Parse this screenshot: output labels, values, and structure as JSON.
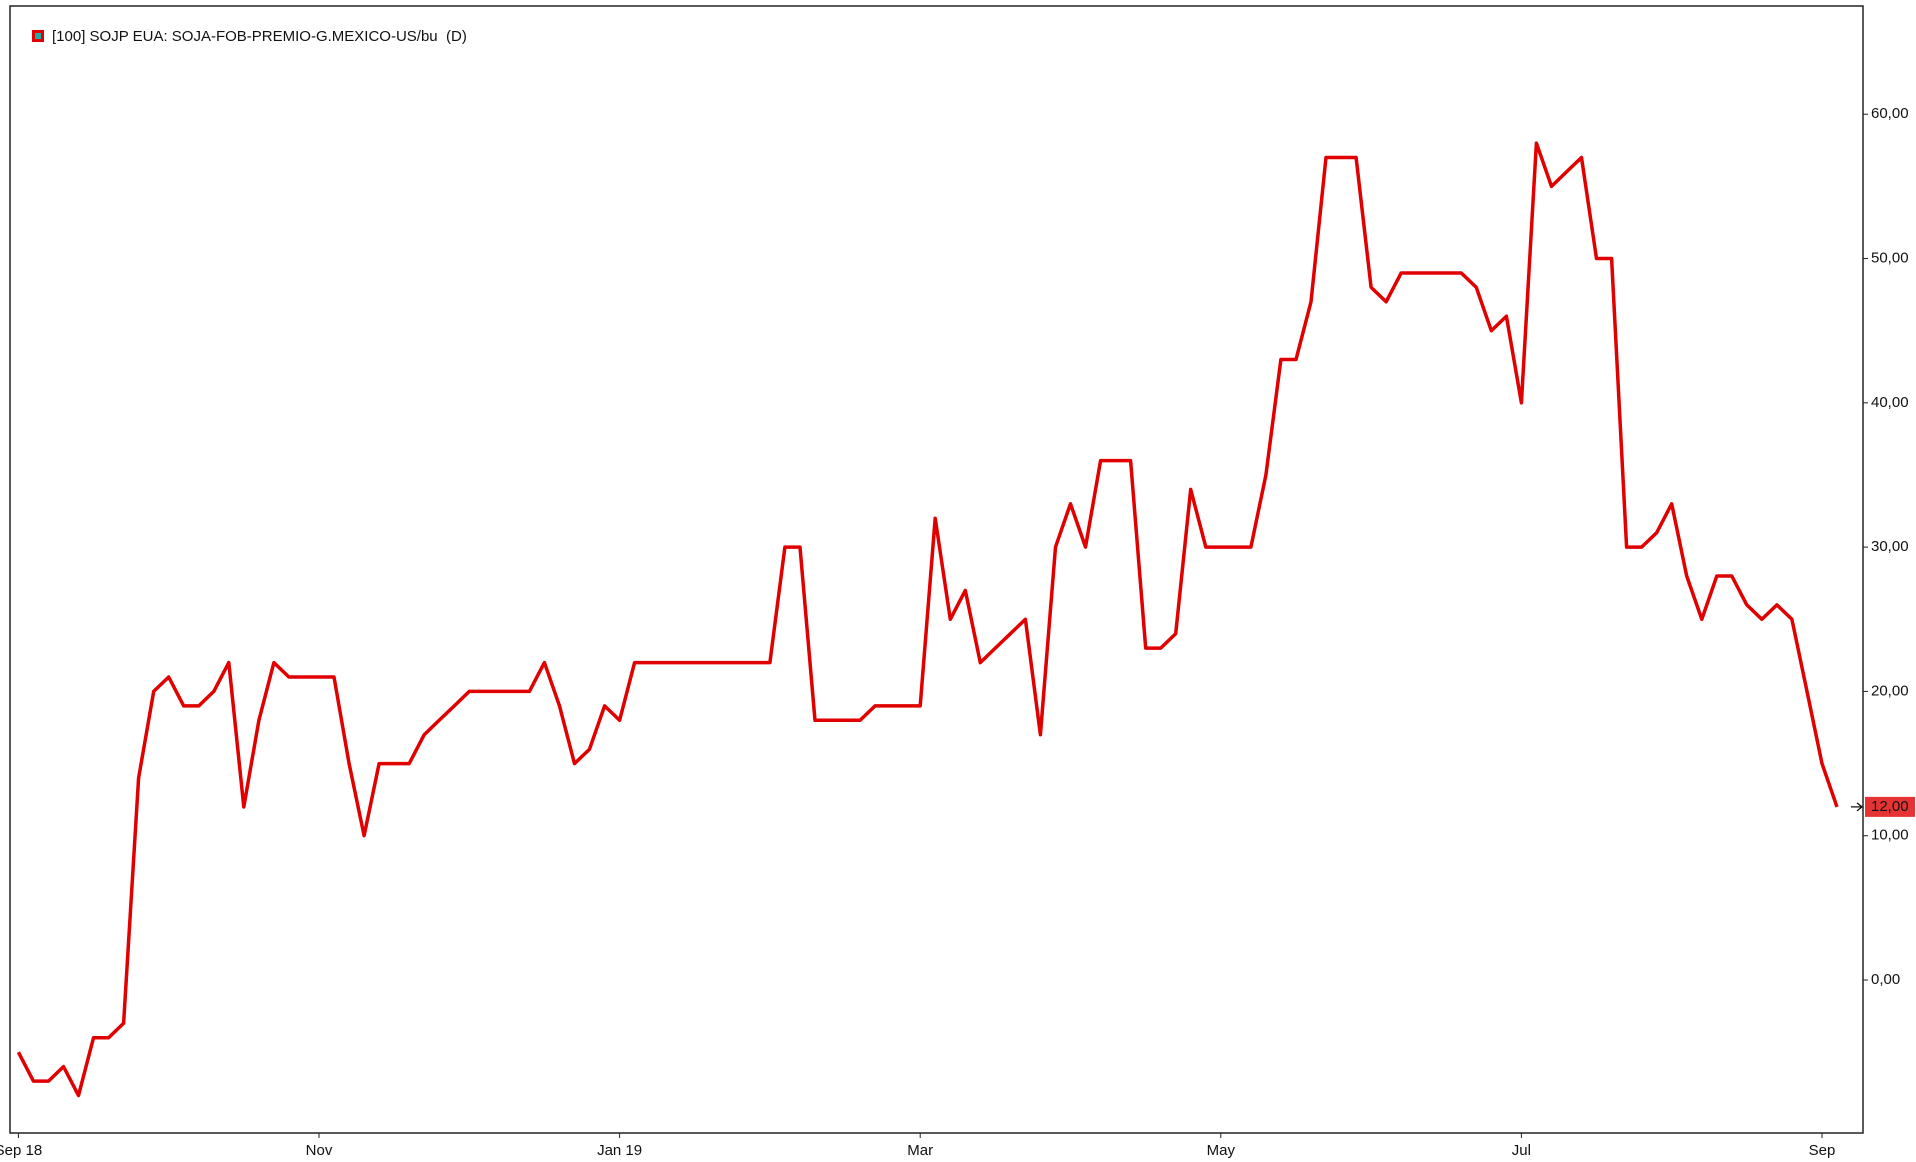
{
  "chart_data": {
    "type": "line",
    "legend": {
      "label": "[100] SOJP EUA: SOJA-FOB-PREMIO-G.MEXICO-US/bu",
      "suffix": "(D)"
    },
    "categories": [
      "Sep 18",
      null,
      null,
      null,
      null,
      null,
      null,
      null,
      null,
      null,
      null,
      null,
      null,
      null,
      null,
      null,
      null,
      null,
      null,
      null,
      "Nov",
      null,
      null,
      null,
      null,
      null,
      null,
      null,
      null,
      null,
      null,
      null,
      null,
      null,
      null,
      null,
      null,
      null,
      null,
      null,
      "Jan 19",
      null,
      null,
      null,
      null,
      null,
      null,
      null,
      null,
      null,
      null,
      null,
      null,
      null,
      null,
      null,
      null,
      null,
      null,
      null,
      "Mar",
      null,
      null,
      null,
      null,
      null,
      null,
      null,
      null,
      null,
      null,
      null,
      null,
      null,
      null,
      null,
      null,
      null,
      null,
      null,
      "May",
      null,
      null,
      null,
      null,
      null,
      null,
      null,
      null,
      null,
      null,
      null,
      null,
      null,
      null,
      null,
      null,
      null,
      null,
      null,
      "Jul",
      null,
      null,
      null,
      null,
      null,
      null,
      null,
      null,
      null,
      null,
      null,
      null,
      null,
      null,
      null,
      null,
      null,
      null,
      null,
      "Sep",
      null
    ],
    "series": [
      {
        "name": "[100] SOJP EUA: SOJA-FOB-PREMIO-G.MEXICO-US/bu",
        "color": "#e00000",
        "values": [
          -5,
          -7,
          -7,
          -6,
          -8,
          -4,
          -4,
          -3,
          14,
          20,
          21,
          19,
          19,
          20,
          22,
          12,
          18,
          22,
          21,
          21,
          21,
          21,
          15,
          10,
          15,
          15,
          15,
          17,
          18,
          19,
          20,
          20,
          20,
          20,
          20,
          22,
          19,
          15,
          16,
          19,
          18,
          22,
          22,
          22,
          22,
          22,
          22,
          22,
          22,
          22,
          22,
          30,
          30,
          18,
          18,
          18,
          18,
          19,
          19,
          19,
          19,
          32,
          25,
          27,
          22,
          23,
          24,
          25,
          17,
          30,
          33,
          30,
          36,
          36,
          36,
          23,
          23,
          24,
          34,
          30,
          30,
          30,
          30,
          35,
          43,
          43,
          47,
          57,
          57,
          57,
          48,
          47,
          49,
          49,
          49,
          49,
          49,
          48,
          45,
          46,
          40,
          58,
          55,
          56,
          57,
          50,
          50,
          30,
          30,
          31,
          33,
          28,
          25,
          28,
          28,
          26,
          25,
          26,
          25,
          20,
          15,
          12
        ]
      }
    ],
    "last_value": {
      "value": 12,
      "label": "12,00"
    },
    "ylim": [
      -10.6,
      67.5
    ],
    "yticks": [
      {
        "value": 0,
        "label": "0,00"
      },
      {
        "value": 10,
        "label": "10,00"
      },
      {
        "value": 20,
        "label": "20,00"
      },
      {
        "value": 30,
        "label": "30,00"
      },
      {
        "value": 40,
        "label": "40,00"
      },
      {
        "value": 50,
        "label": "50,00"
      },
      {
        "value": 60,
        "label": "60,00"
      }
    ],
    "grid": false
  }
}
